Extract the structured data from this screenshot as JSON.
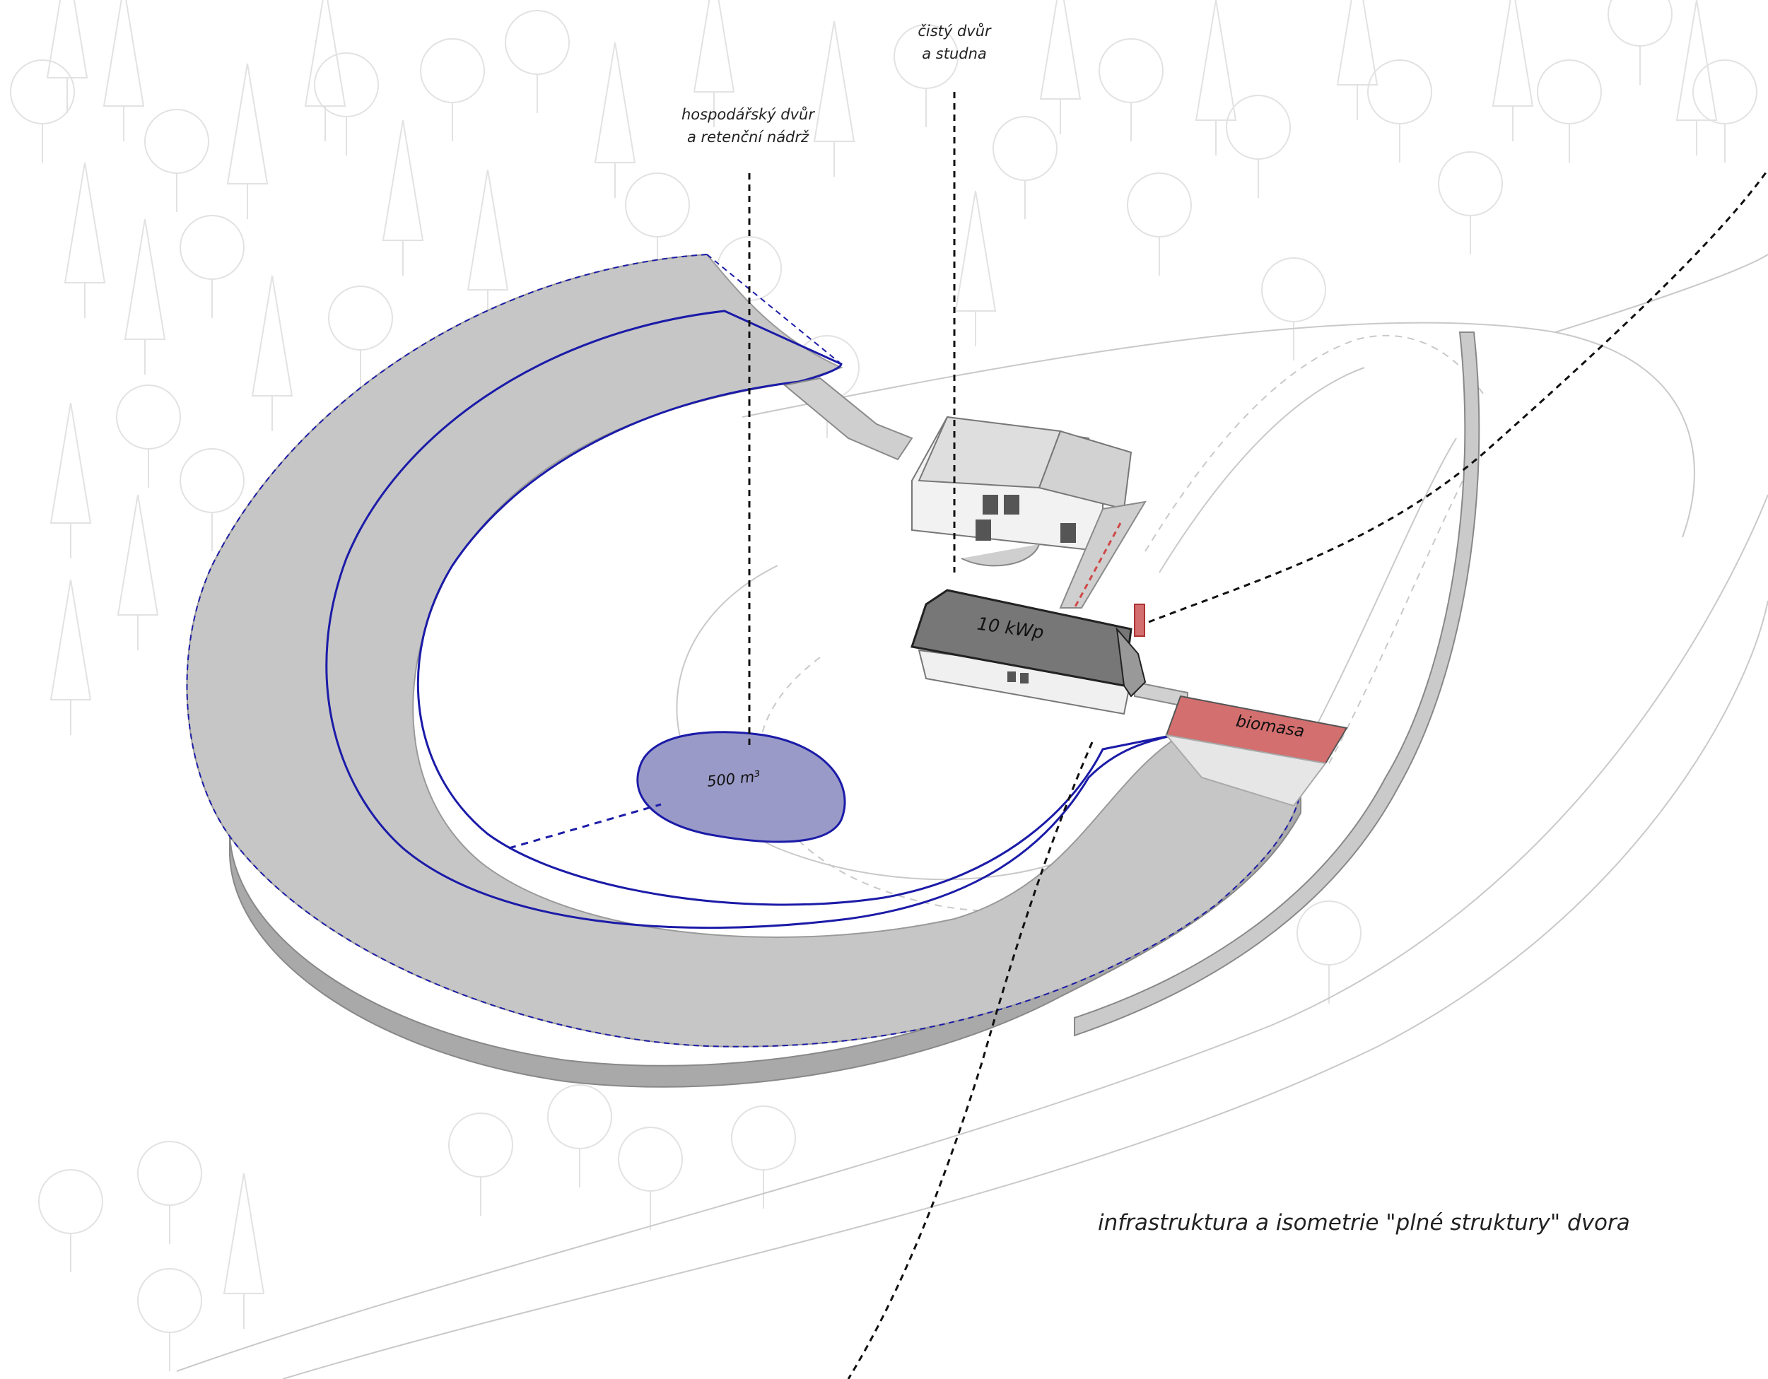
{
  "labels": {
    "farmyard": [
      "hospodářský dvůr",
      "a retenční nádrž"
    ],
    "clean_yard": [
      "čistý dvůr",
      "a studna"
    ],
    "solar": "10 kWp",
    "tank_volume": "500 m³",
    "biomass": "biomasa",
    "caption": "infrastruktura a isometrie \"plné struktury\" dvora"
  },
  "colors": {
    "roof_grey": "#c6c6c6",
    "wall_grey": "#a9a9a9",
    "outline_blue": "#1b1ba8",
    "pond_fill": "#9a9ac8",
    "biomass_red": "#d46f6f",
    "dashed_line": "#111111",
    "tree_line": "#e2e2e2",
    "contour": "#c9c9c9"
  },
  "icons": [
    "tree-conifer-icon",
    "tree-deciduous-icon"
  ]
}
